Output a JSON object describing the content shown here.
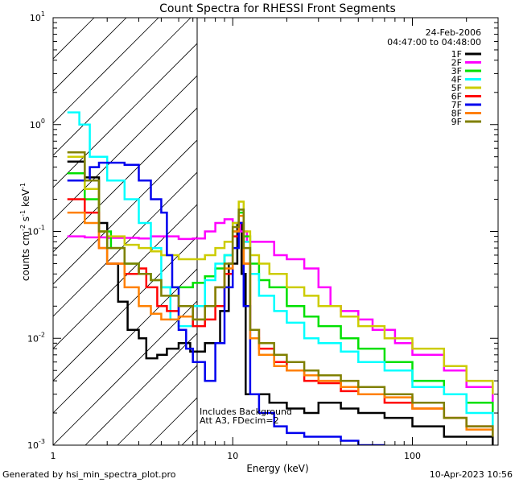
{
  "chart_data": {
    "type": "line",
    "title": "Count Spectra for RHESSI Front Segments",
    "xlabel": "Energy (keV)",
    "ylabel": "counts cm",
    "ylabel_sup1": "-2",
    "ylabel_mid": " s",
    "ylabel_sup2": "-1",
    "ylabel_end": " keV",
    "ylabel_sup3": "-1",
    "xscale": "log",
    "yscale": "log",
    "xlim": [
      1,
      300
    ],
    "ylim": [
      0.001,
      10
    ],
    "x_ticks": [
      {
        "value": 1,
        "label": "1"
      },
      {
        "value": 10,
        "label": "10"
      },
      {
        "value": 100,
        "label": "100"
      }
    ],
    "y_ticks": [
      {
        "value": 0.001,
        "base": "10",
        "exp": "-3"
      },
      {
        "value": 0.01,
        "base": "10",
        "exp": "-2"
      },
      {
        "value": 0.1,
        "base": "10",
        "exp": "-1"
      },
      {
        "value": 1,
        "base": "10",
        "exp": "0"
      },
      {
        "value": 10,
        "base": "10",
        "exp": "1"
      }
    ],
    "date": "24-Feb-2006",
    "time_range": "04:47:00 to 04:48:00",
    "hatched_region": [
      1,
      6
    ],
    "annotations": [
      "Includes Background",
      "Att A3, FDecim=2"
    ],
    "series": [
      {
        "name": "1F",
        "color": "#000000",
        "points": [
          [
            1.2,
            0.45
          ],
          [
            1.5,
            0.32
          ],
          [
            1.8,
            0.12
          ],
          [
            2.0,
            0.05
          ],
          [
            2.3,
            0.022
          ],
          [
            2.6,
            0.012
          ],
          [
            3.0,
            0.01
          ],
          [
            3.3,
            0.0065
          ],
          [
            3.8,
            0.007
          ],
          [
            4.3,
            0.008
          ],
          [
            5.0,
            0.009
          ],
          [
            5.8,
            0.0075
          ],
          [
            7.0,
            0.009
          ],
          [
            8.5,
            0.018
          ],
          [
            9.5,
            0.05
          ],
          [
            10.6,
            0.12
          ],
          [
            11.2,
            0.04
          ],
          [
            11.8,
            0.003
          ],
          [
            13,
            0.003
          ],
          [
            16,
            0.0025
          ],
          [
            20,
            0.0022
          ],
          [
            25,
            0.002
          ],
          [
            30,
            0.0025
          ],
          [
            40,
            0.0022
          ],
          [
            50,
            0.002
          ],
          [
            70,
            0.0018
          ],
          [
            100,
            0.0015
          ],
          [
            150,
            0.0012
          ],
          [
            200,
            0.0012
          ],
          [
            280,
            0.001
          ]
        ]
      },
      {
        "name": "2F",
        "color": "#ff00ff",
        "points": [
          [
            1.2,
            0.09
          ],
          [
            1.5,
            0.088
          ],
          [
            2.0,
            0.087
          ],
          [
            2.5,
            0.087
          ],
          [
            3.0,
            0.086
          ],
          [
            3.5,
            0.09
          ],
          [
            4.0,
            0.09
          ],
          [
            5.0,
            0.085
          ],
          [
            6.0,
            0.086
          ],
          [
            7.0,
            0.1
          ],
          [
            8.0,
            0.12
          ],
          [
            9.0,
            0.13
          ],
          [
            10.0,
            0.12
          ],
          [
            11.0,
            0.1
          ],
          [
            12.0,
            0.08
          ],
          [
            14,
            0.08
          ],
          [
            17,
            0.06
          ],
          [
            20,
            0.055
          ],
          [
            25,
            0.045
          ],
          [
            30,
            0.03
          ],
          [
            35,
            0.02
          ],
          [
            40,
            0.018
          ],
          [
            50,
            0.015
          ],
          [
            60,
            0.012
          ],
          [
            80,
            0.009
          ],
          [
            100,
            0.007
          ],
          [
            150,
            0.005
          ],
          [
            200,
            0.0035
          ],
          [
            280,
            0.0025
          ]
        ]
      },
      {
        "name": "3F",
        "color": "#00e000",
        "points": [
          [
            1.2,
            0.35
          ],
          [
            1.5,
            0.2
          ],
          [
            1.8,
            0.1
          ],
          [
            2.1,
            0.07
          ],
          [
            2.5,
            0.05
          ],
          [
            3.0,
            0.04
          ],
          [
            3.5,
            0.035
          ],
          [
            4.0,
            0.03
          ],
          [
            5.0,
            0.03
          ],
          [
            6.0,
            0.033
          ],
          [
            7.0,
            0.038
          ],
          [
            8.0,
            0.045
          ],
          [
            9.0,
            0.06
          ],
          [
            10.0,
            0.1
          ],
          [
            10.8,
            0.15
          ],
          [
            11.5,
            0.09
          ],
          [
            12.5,
            0.05
          ],
          [
            14,
            0.035
          ],
          [
            16,
            0.03
          ],
          [
            20,
            0.02
          ],
          [
            25,
            0.016
          ],
          [
            30,
            0.013
          ],
          [
            40,
            0.01
          ],
          [
            50,
            0.008
          ],
          [
            70,
            0.006
          ],
          [
            100,
            0.004
          ],
          [
            150,
            0.003
          ],
          [
            200,
            0.0025
          ],
          [
            280,
            0.002
          ]
        ]
      },
      {
        "name": "4F",
        "color": "#00ffff",
        "points": [
          [
            1.2,
            1.3
          ],
          [
            1.4,
            1.0
          ],
          [
            1.6,
            0.5
          ],
          [
            2.0,
            0.3
          ],
          [
            2.5,
            0.2
          ],
          [
            3.0,
            0.12
          ],
          [
            3.5,
            0.07
          ],
          [
            4.0,
            0.03
          ],
          [
            4.5,
            0.015
          ],
          [
            5.0,
            0.013
          ],
          [
            6.0,
            0.02
          ],
          [
            7.0,
            0.035
          ],
          [
            8.0,
            0.05
          ],
          [
            9.0,
            0.06
          ],
          [
            10.0,
            0.12
          ],
          [
            10.8,
            0.16
          ],
          [
            11.5,
            0.08
          ],
          [
            12.5,
            0.04
          ],
          [
            14,
            0.025
          ],
          [
            17,
            0.018
          ],
          [
            20,
            0.014
          ],
          [
            25,
            0.01
          ],
          [
            30,
            0.009
          ],
          [
            40,
            0.0075
          ],
          [
            50,
            0.006
          ],
          [
            70,
            0.005
          ],
          [
            100,
            0.0035
          ],
          [
            150,
            0.003
          ],
          [
            200,
            0.002
          ],
          [
            280,
            0.0015
          ]
        ]
      },
      {
        "name": "5F",
        "color": "#cccc00",
        "points": [
          [
            1.2,
            0.5
          ],
          [
            1.5,
            0.25
          ],
          [
            1.8,
            0.1
          ],
          [
            2.0,
            0.09
          ],
          [
            2.5,
            0.075
          ],
          [
            3.0,
            0.07
          ],
          [
            3.5,
            0.065
          ],
          [
            4.0,
            0.06
          ],
          [
            5.0,
            0.055
          ],
          [
            6.0,
            0.055
          ],
          [
            7.0,
            0.06
          ],
          [
            8.0,
            0.07
          ],
          [
            9.0,
            0.08
          ],
          [
            10.0,
            0.12
          ],
          [
            10.8,
            0.19
          ],
          [
            11.5,
            0.1
          ],
          [
            12.5,
            0.06
          ],
          [
            14,
            0.05
          ],
          [
            16,
            0.04
          ],
          [
            20,
            0.03
          ],
          [
            25,
            0.025
          ],
          [
            30,
            0.02
          ],
          [
            40,
            0.016
          ],
          [
            50,
            0.013
          ],
          [
            70,
            0.01
          ],
          [
            100,
            0.008
          ],
          [
            150,
            0.0055
          ],
          [
            200,
            0.004
          ],
          [
            280,
            0.003
          ]
        ]
      },
      {
        "name": "6F",
        "color": "#ff0000",
        "points": [
          [
            1.2,
            0.2
          ],
          [
            1.5,
            0.15
          ],
          [
            1.8,
            0.07
          ],
          [
            2.0,
            0.05
          ],
          [
            2.5,
            0.04
          ],
          [
            3.0,
            0.045
          ],
          [
            3.3,
            0.03
          ],
          [
            3.8,
            0.02
          ],
          [
            4.3,
            0.018
          ],
          [
            5.0,
            0.02
          ],
          [
            6.0,
            0.013
          ],
          [
            7.0,
            0.015
          ],
          [
            8.0,
            0.02
          ],
          [
            9.0,
            0.04
          ],
          [
            10.0,
            0.09
          ],
          [
            10.8,
            0.12
          ],
          [
            11.5,
            0.05
          ],
          [
            12.5,
            0.012
          ],
          [
            14,
            0.008
          ],
          [
            17,
            0.006
          ],
          [
            20,
            0.005
          ],
          [
            25,
            0.004
          ],
          [
            30,
            0.0038
          ],
          [
            40,
            0.0032
          ],
          [
            50,
            0.003
          ],
          [
            70,
            0.0025
          ],
          [
            100,
            0.0022
          ],
          [
            150,
            0.0018
          ],
          [
            200,
            0.0015
          ],
          [
            280,
            0.0012
          ]
        ]
      },
      {
        "name": "7F",
        "color": "#0000ee",
        "points": [
          [
            1.2,
            0.3
          ],
          [
            1.4,
            0.3
          ],
          [
            1.6,
            0.4
          ],
          [
            1.8,
            0.44
          ],
          [
            2.0,
            0.44
          ],
          [
            2.5,
            0.42
          ],
          [
            3.0,
            0.3
          ],
          [
            3.5,
            0.2
          ],
          [
            4.0,
            0.15
          ],
          [
            4.3,
            0.06
          ],
          [
            4.6,
            0.03
          ],
          [
            5.0,
            0.012
          ],
          [
            5.5,
            0.008
          ],
          [
            6.0,
            0.006
          ],
          [
            7.0,
            0.004
          ],
          [
            8.0,
            0.009
          ],
          [
            9.0,
            0.03
          ],
          [
            10.0,
            0.07
          ],
          [
            10.8,
            0.12
          ],
          [
            11.5,
            0.02
          ],
          [
            12.5,
            0.003
          ],
          [
            14,
            0.002
          ],
          [
            17,
            0.0015
          ],
          [
            20,
            0.0013
          ],
          [
            25,
            0.0012
          ],
          [
            30,
            0.0012
          ],
          [
            40,
            0.0011
          ],
          [
            50,
            0.001
          ],
          [
            70,
            0.001
          ]
        ]
      },
      {
        "name": "8F",
        "color": "#ff8000",
        "points": [
          [
            1.2,
            0.15
          ],
          [
            1.5,
            0.12
          ],
          [
            1.8,
            0.07
          ],
          [
            2.0,
            0.05
          ],
          [
            2.5,
            0.03
          ],
          [
            3.0,
            0.02
          ],
          [
            3.5,
            0.017
          ],
          [
            4.0,
            0.015
          ],
          [
            5.0,
            0.016
          ],
          [
            6.0,
            0.015
          ],
          [
            7.0,
            0.02
          ],
          [
            8.0,
            0.03
          ],
          [
            9.0,
            0.045
          ],
          [
            10.0,
            0.1
          ],
          [
            10.8,
            0.14
          ],
          [
            11.5,
            0.05
          ],
          [
            12.5,
            0.01
          ],
          [
            14,
            0.007
          ],
          [
            17,
            0.0055
          ],
          [
            20,
            0.005
          ],
          [
            25,
            0.0045
          ],
          [
            30,
            0.004
          ],
          [
            40,
            0.0035
          ],
          [
            50,
            0.003
          ],
          [
            70,
            0.0028
          ],
          [
            100,
            0.0022
          ],
          [
            150,
            0.0018
          ],
          [
            200,
            0.0014
          ],
          [
            280,
            0.0012
          ]
        ]
      },
      {
        "name": "9F",
        "color": "#808000",
        "points": [
          [
            1.2,
            0.55
          ],
          [
            1.5,
            0.3
          ],
          [
            1.8,
            0.1
          ],
          [
            2.0,
            0.07
          ],
          [
            2.5,
            0.05
          ],
          [
            3.0,
            0.04
          ],
          [
            3.5,
            0.035
          ],
          [
            4.0,
            0.025
          ],
          [
            5.0,
            0.02
          ],
          [
            6.0,
            0.015
          ],
          [
            7.0,
            0.02
          ],
          [
            8.0,
            0.03
          ],
          [
            9.0,
            0.05
          ],
          [
            10.0,
            0.11
          ],
          [
            10.8,
            0.16
          ],
          [
            11.5,
            0.07
          ],
          [
            12.5,
            0.012
          ],
          [
            14,
            0.009
          ],
          [
            17,
            0.007
          ],
          [
            20,
            0.006
          ],
          [
            25,
            0.005
          ],
          [
            30,
            0.0045
          ],
          [
            40,
            0.004
          ],
          [
            50,
            0.0035
          ],
          [
            70,
            0.003
          ],
          [
            100,
            0.0025
          ],
          [
            150,
            0.0018
          ],
          [
            200,
            0.0015
          ],
          [
            280,
            0.0012
          ]
        ]
      }
    ]
  },
  "footer": {
    "left": "Generated by hsi_min_spectra_plot.pro",
    "right": "10-Apr-2023 10:56"
  }
}
